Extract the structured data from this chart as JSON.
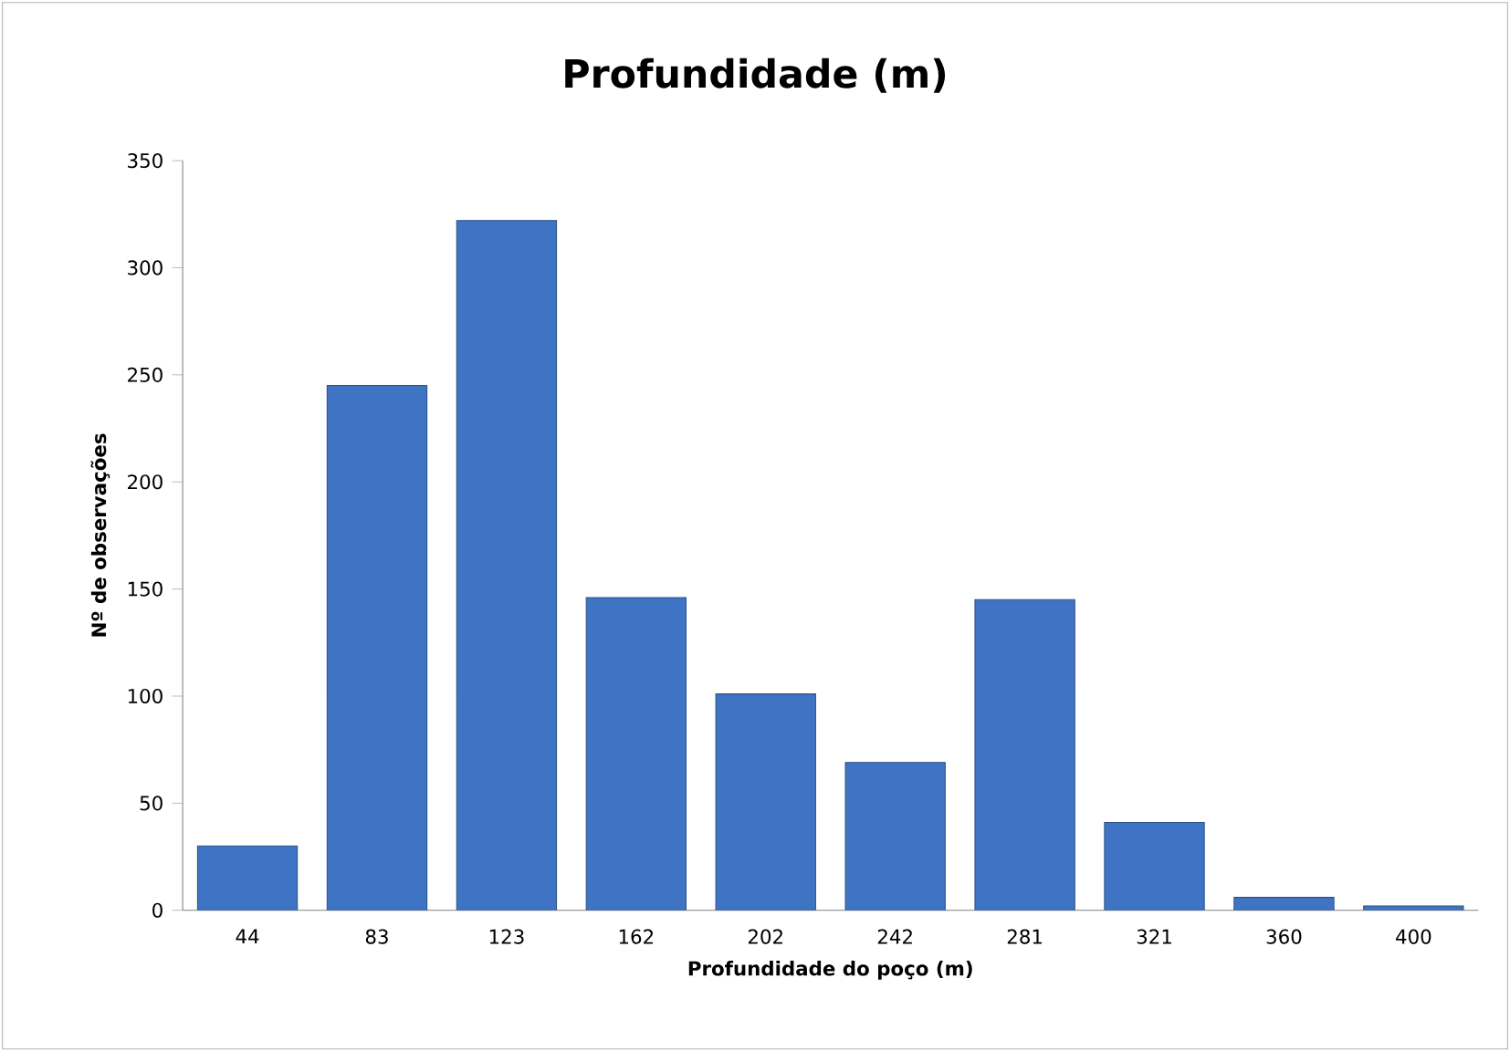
{
  "chart_data": {
    "type": "bar",
    "title": "Profundidade (m)",
    "xlabel": "Profundidade do poço (m)",
    "ylabel": "Nº de observações",
    "categories": [
      "44",
      "83",
      "123",
      "162",
      "202",
      "242",
      "281",
      "321",
      "360",
      "400"
    ],
    "values": [
      30,
      245,
      322,
      146,
      101,
      69,
      145,
      41,
      6,
      2
    ],
    "color": "#3f74c4",
    "ylim": [
      0,
      350
    ],
    "yticks": [
      0,
      50,
      100,
      150,
      200,
      250,
      300,
      350
    ]
  }
}
